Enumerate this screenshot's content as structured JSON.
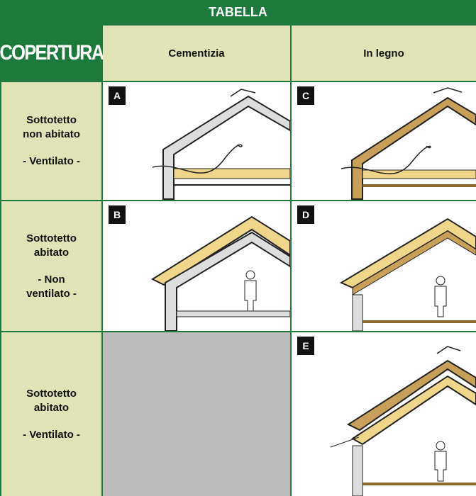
{
  "header": {
    "title": "TABELLA",
    "corner": "COPERTURA",
    "columns": [
      "Cementizia",
      "In legno"
    ]
  },
  "rows": [
    {
      "label": [
        "Sottotetto",
        "non abitato",
        "- Ventilato -"
      ],
      "cementizia": "A",
      "legno": "C"
    },
    {
      "label": [
        "Sottotetto",
        "abitato",
        "- Non",
        "ventilato -"
      ],
      "cementizia": "B",
      "legno": "D"
    },
    {
      "label": [
        "Sottotetto",
        "abitato",
        "- Ventilato -"
      ],
      "legno": "E"
    }
  ]
}
